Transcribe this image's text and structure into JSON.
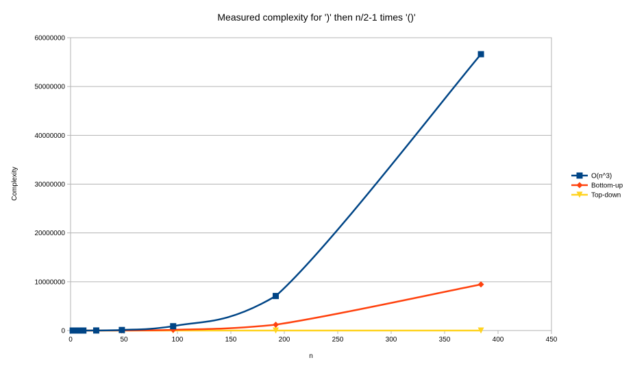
{
  "chart_data": {
    "type": "line",
    "title": "Measured complexity for ')' then n/2-1 times '()'",
    "xlabel": "n",
    "ylabel": "Complexity",
    "xlim": [
      0,
      450
    ],
    "ylim": [
      0,
      60000000
    ],
    "xticks": [
      0,
      50,
      100,
      150,
      200,
      250,
      300,
      350,
      400,
      450
    ],
    "yticks": [
      0,
      10000000,
      20000000,
      30000000,
      40000000,
      50000000,
      60000000
    ],
    "grid": "horizontal",
    "legend_position": "right",
    "series": [
      {
        "name": "O(n^3)",
        "color": "#004586",
        "marker": "square",
        "x": [
          2,
          4,
          6,
          8,
          12,
          24,
          48,
          96,
          192,
          384
        ],
        "y": [
          8,
          64,
          216,
          512,
          1728,
          13824,
          110592,
          884736,
          7077888,
          56623104
        ]
      },
      {
        "name": "Bottom-up",
        "color": "#ff420e",
        "marker": "diamond",
        "x": [
          2,
          4,
          6,
          8,
          12,
          24,
          48,
          96,
          192,
          384
        ],
        "y": [
          2,
          10,
          30,
          60,
          200,
          1500,
          12000,
          145000,
          1200000,
          9450000
        ]
      },
      {
        "name": "Top-down",
        "color": "#ffd320",
        "marker": "triangle-down",
        "x": [
          2,
          4,
          6,
          8,
          12,
          24,
          48,
          96,
          192,
          384
        ],
        "y": [
          2,
          4,
          6,
          8,
          12,
          24,
          48,
          96,
          192,
          384
        ]
      }
    ]
  }
}
